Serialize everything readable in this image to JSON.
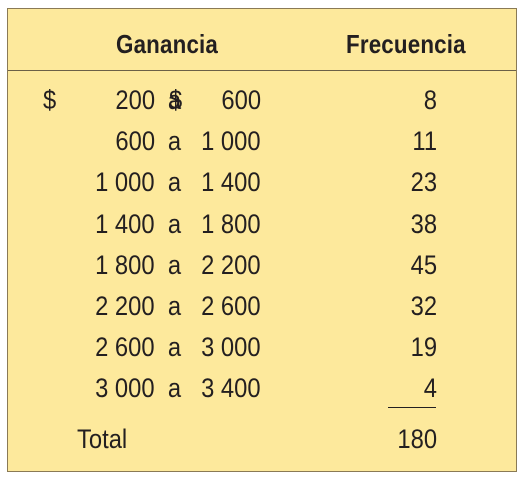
{
  "headers": {
    "gain": "Ganancia",
    "frequency": "Frecuencia"
  },
  "rows": [
    {
      "currency_low": "$",
      "low": "200",
      "sep": "a",
      "currency_high": "$",
      "high": "600",
      "frequency": "8"
    },
    {
      "currency_low": "",
      "low": "600",
      "sep": "a",
      "currency_high": "",
      "high": "1 000",
      "frequency": "11"
    },
    {
      "currency_low": "",
      "low": "1 000",
      "sep": "a",
      "currency_high": "",
      "high": "1 400",
      "frequency": "23"
    },
    {
      "currency_low": "",
      "low": "1 400",
      "sep": "a",
      "currency_high": "",
      "high": "1 800",
      "frequency": "38"
    },
    {
      "currency_low": "",
      "low": "1 800",
      "sep": "a",
      "currency_high": "",
      "high": "2 200",
      "frequency": "45"
    },
    {
      "currency_low": "",
      "low": "2 200",
      "sep": "a",
      "currency_high": "",
      "high": "2 600",
      "frequency": "32"
    },
    {
      "currency_low": "",
      "low": "2 600",
      "sep": "a",
      "currency_high": "",
      "high": "3 000",
      "frequency": "19"
    },
    {
      "currency_low": "",
      "low": "3 000",
      "sep": "a",
      "currency_high": "",
      "high": "3 400",
      "frequency": "4"
    }
  ],
  "total": {
    "label": "Total",
    "value": "180"
  },
  "colors": {
    "panel_background": "#fde99c",
    "text": "#231f20"
  }
}
